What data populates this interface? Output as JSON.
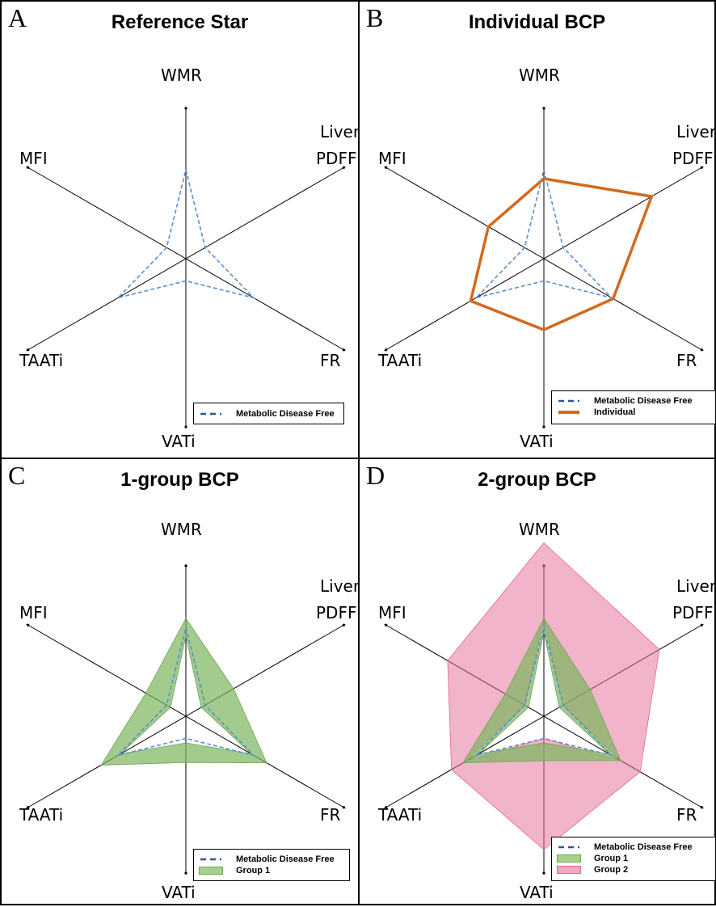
{
  "axes": [
    "WMR",
    "Liver PDFF",
    "FR",
    "VATi",
    "TAATi",
    "MFI"
  ],
  "axis_labels": {
    "wmr": "WMR",
    "liver": "Liver",
    "pdff": "PDFF",
    "fr": "FR",
    "vati": "VATi",
    "taati": "TAATi",
    "mfi": "MFI"
  },
  "panels": [
    {
      "letter": "A",
      "title": "Reference Star"
    },
    {
      "letter": "B",
      "title": "Individual BCP"
    },
    {
      "letter": "C",
      "title": "1-group BCP"
    },
    {
      "letter": "D",
      "title": "2-group BCP"
    }
  ],
  "legend": {
    "reference": "Metabolic Disease Free",
    "individual": "Individual",
    "group1": "Group 1",
    "group2": "Group 2"
  },
  "colors": {
    "reference": "#5b8fd0",
    "reference_legend": "#2f5597",
    "individual": "#d2691e",
    "group1_fill": "#7ab55c",
    "group1_stroke": "#6aa84f",
    "group2_fill": "#e8769f",
    "group2_stroke": "#e06690",
    "axis": "#000000"
  },
  "chart_data": [
    {
      "type": "radar",
      "title": "Reference Star",
      "axes": [
        "WMR",
        "Liver PDFF",
        "FR",
        "VATi",
        "TAATi",
        "MFI"
      ],
      "series": [
        {
          "name": "Metabolic Disease Free",
          "values": [
            1.0,
            0.25,
            0.88,
            0.25,
            0.88,
            0.25
          ]
        }
      ]
    },
    {
      "type": "radar",
      "title": "Individual BCP",
      "axes": [
        "WMR",
        "Liver PDFF",
        "FR",
        "VATi",
        "TAATi",
        "MFI"
      ],
      "series": [
        {
          "name": "Metabolic Disease Free",
          "values": [
            1.0,
            0.25,
            0.88,
            0.25,
            0.88,
            0.25
          ]
        },
        {
          "name": "Individual",
          "values": [
            0.9,
            1.4,
            0.9,
            0.8,
            0.95,
            0.72
          ]
        }
      ]
    },
    {
      "type": "radar",
      "title": "1-group BCP",
      "axes": [
        "WMR",
        "Liver PDFF",
        "FR",
        "VATi",
        "TAATi",
        "MFI"
      ],
      "series": [
        {
          "name": "Metabolic Disease Free",
          "values": [
            1.0,
            0.25,
            0.88,
            0.25,
            0.88,
            0.25
          ]
        },
        {
          "name": "Group 1",
          "band": true,
          "lower": [
            0.9,
            0.2,
            0.85,
            0.3,
            0.85,
            0.2
          ],
          "upper": [
            1.1,
            0.62,
            1.05,
            0.52,
            1.1,
            0.52
          ]
        }
      ]
    },
    {
      "type": "radar",
      "title": "2-group BCP",
      "axes": [
        "WMR",
        "Liver PDFF",
        "FR",
        "VATi",
        "TAATi",
        "MFI"
      ],
      "series": [
        {
          "name": "Metabolic Disease Free",
          "values": [
            1.0,
            0.25,
            0.88,
            0.25,
            0.88,
            0.25
          ]
        },
        {
          "name": "Group 1",
          "band": true,
          "lower": [
            0.95,
            0.2,
            0.85,
            0.3,
            0.85,
            0.2
          ],
          "upper": [
            1.1,
            0.6,
            1.0,
            0.5,
            1.05,
            0.5
          ]
        },
        {
          "name": "Group 2",
          "band": true,
          "lower": [
            1.1,
            0.25,
            1.0,
            0.25,
            1.0,
            0.25
          ],
          "upper": [
            1.95,
            1.5,
            1.25,
            1.5,
            1.2,
            1.25
          ]
        }
      ]
    }
  ]
}
